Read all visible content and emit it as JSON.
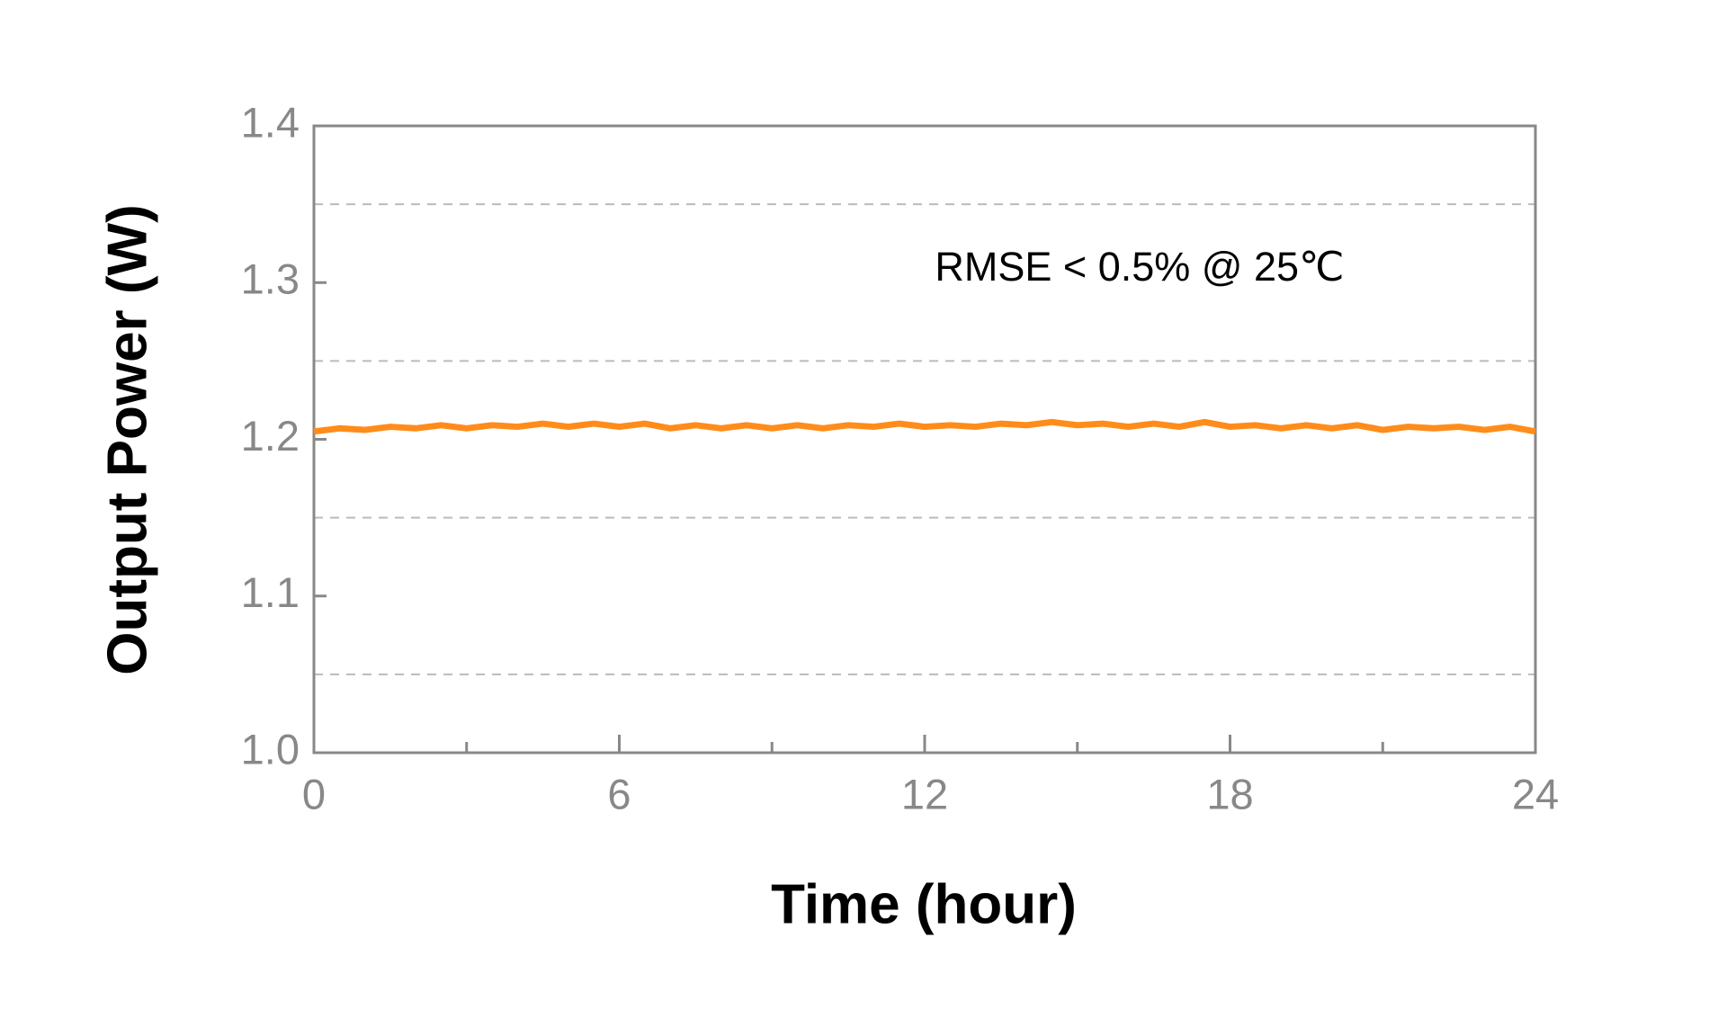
{
  "chart_data": {
    "type": "line",
    "x_label": "Time (hour)",
    "y_label": "Output Power (W)",
    "annotations": [
      "RMSE < 0.5% @ 25℃"
    ],
    "x": [
      0,
      0.5,
      1,
      1.5,
      2,
      2.5,
      3,
      3.5,
      4,
      4.5,
      5,
      5.5,
      6,
      6.5,
      7,
      7.5,
      8,
      8.5,
      9,
      9.5,
      10,
      10.5,
      11,
      11.5,
      12,
      12.5,
      13,
      13.5,
      14,
      14.5,
      15,
      15.5,
      16,
      16.5,
      17,
      17.5,
      18,
      18.5,
      19,
      19.5,
      20,
      20.5,
      21,
      21.5,
      22,
      22.5,
      23,
      23.5,
      24
    ],
    "series": [
      {
        "color": "#ff8c1a",
        "values": [
          1.205,
          1.207,
          1.206,
          1.208,
          1.207,
          1.209,
          1.207,
          1.209,
          1.208,
          1.21,
          1.208,
          1.21,
          1.208,
          1.21,
          1.207,
          1.209,
          1.207,
          1.209,
          1.207,
          1.209,
          1.207,
          1.209,
          1.208,
          1.21,
          1.208,
          1.209,
          1.208,
          1.21,
          1.209,
          1.211,
          1.209,
          1.21,
          1.208,
          1.21,
          1.208,
          1.211,
          1.208,
          1.209,
          1.207,
          1.209,
          1.207,
          1.209,
          1.206,
          1.208,
          1.207,
          1.208,
          1.206,
          1.208,
          1.205
        ]
      }
    ],
    "xlim": [
      0,
      24
    ],
    "xticks": [
      0,
      6,
      12,
      18,
      24
    ],
    "minor_xticks": [
      3,
      9,
      15,
      21
    ],
    "ylim": [
      1,
      1.4
    ],
    "yticks": [
      {
        "value": 1,
        "label": "1.0"
      },
      1.1,
      1.2,
      1.3,
      1.4
    ],
    "minor_yticks": [
      1.05,
      1.15,
      1.25,
      1.35
    ],
    "grid": true
  }
}
